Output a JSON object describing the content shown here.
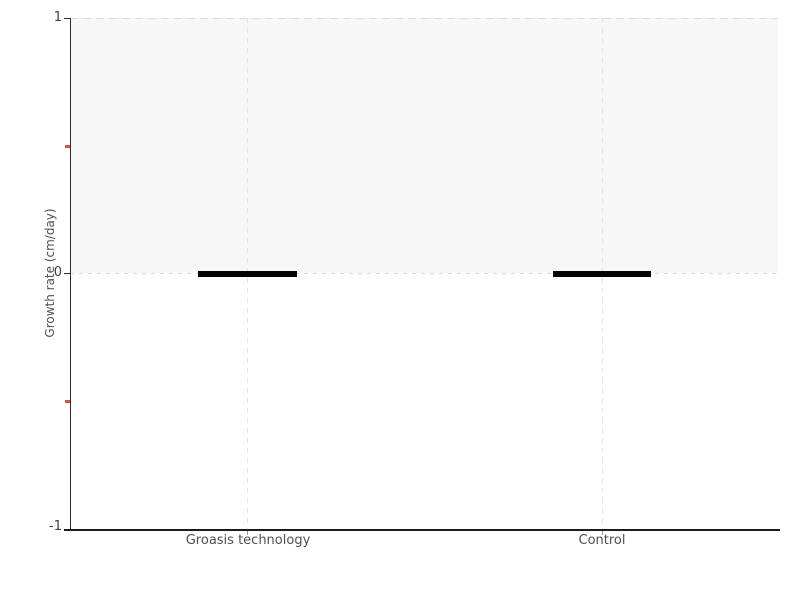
{
  "chart_data": {
    "type": "box",
    "categories": [
      "Groasis technology",
      "Control"
    ],
    "values": [
      0,
      0
    ],
    "series": [
      {
        "name": "Groasis technology",
        "min": 0,
        "median": 0,
        "max": 0
      },
      {
        "name": "Control",
        "min": 0,
        "median": 0,
        "max": 0
      }
    ],
    "title": "",
    "xlabel": "",
    "ylabel": "Growth rate (cm/day)",
    "ylim": [
      -1,
      1
    ],
    "ytick_labels": [
      "1",
      "0",
      "-1"
    ],
    "minor_yticks": [
      0.5,
      -0.5
    ],
    "band": {
      "from": 0,
      "to": 1,
      "color": "#f7f7f7"
    },
    "grid": "dashed horizontal lines at y=1 and y=0; dashed vertical lines at each category",
    "legend_position": "none"
  },
  "colors": {
    "band": "#f7f7f7",
    "axis": "#2b2b2b",
    "box": "#040404",
    "gridline": "#dedede",
    "minor_tick": "#ee4a3f",
    "text": "#4a4a4a"
  }
}
